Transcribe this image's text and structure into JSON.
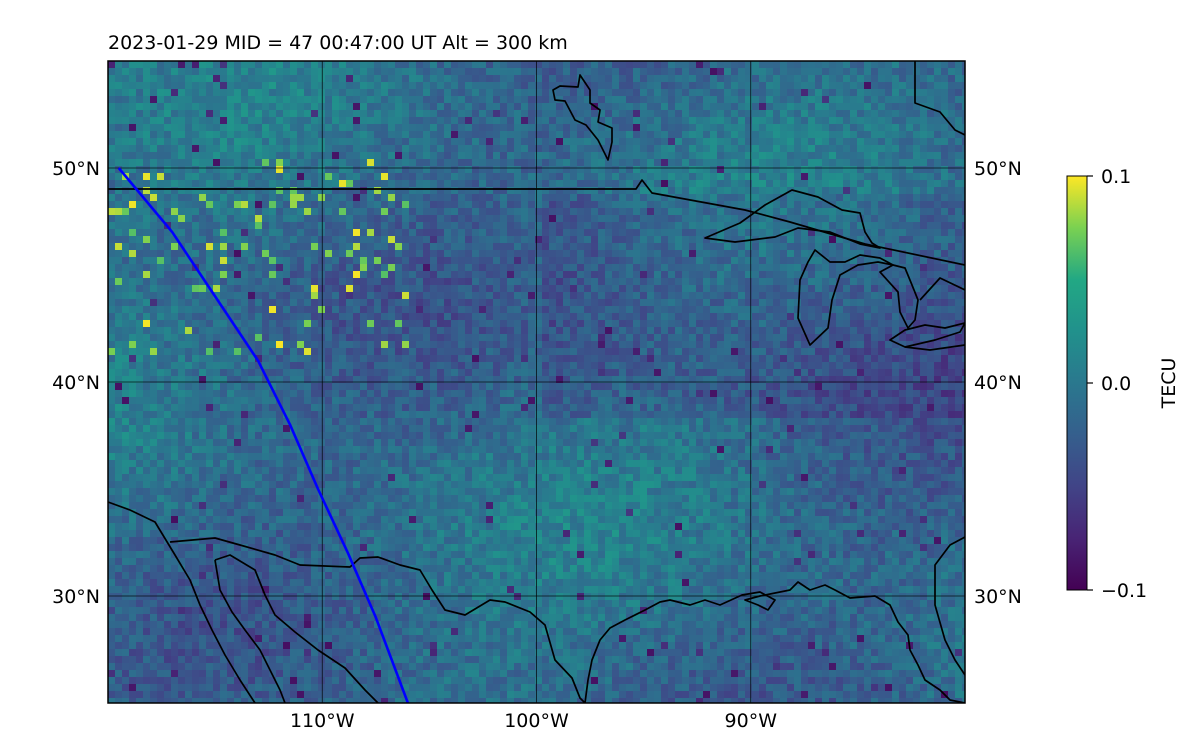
{
  "title": "2023-01-29  MID =  47    00:47:00  UT  Alt = 300 km",
  "map": {
    "lon_range": [
      -120,
      -80
    ],
    "lat_range": [
      25,
      55
    ],
    "lat_ticks": [
      {
        "value": 50,
        "label": "50°N"
      },
      {
        "value": 40,
        "label": "40°N"
      },
      {
        "value": 30,
        "label": "30°N"
      }
    ],
    "lon_ticks": [
      {
        "value": -110,
        "label": "110°W"
      },
      {
        "value": -100,
        "label": "100°W"
      },
      {
        "value": -90,
        "label": "90°W"
      }
    ],
    "gridlines": true,
    "satellite_track": {
      "color": "#0000ff",
      "points": [
        [
          -119.5,
          50.0
        ],
        [
          -117.0,
          47.0
        ],
        [
          -115.0,
          44.0
        ],
        [
          -113.0,
          41.0
        ],
        [
          -111.5,
          38.0
        ],
        [
          -110.2,
          35.0
        ],
        [
          -108.8,
          32.0
        ],
        [
          -107.5,
          29.0
        ],
        [
          -106.0,
          25.0
        ]
      ]
    },
    "coastline_color": "#000000"
  },
  "colorbar": {
    "label": "TECU",
    "ticks": [
      {
        "value": 0.1,
        "label": "0.1"
      },
      {
        "value": 0.0,
        "label": "0.0"
      },
      {
        "value": -0.1,
        "label": "−0.1"
      }
    ],
    "range": [
      -0.1,
      0.1
    ],
    "colormap": "viridis"
  }
}
